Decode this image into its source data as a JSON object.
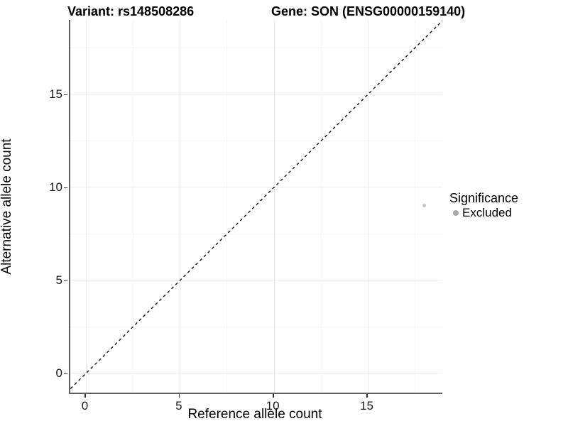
{
  "titles": {
    "variant": "Variant: rs148508286",
    "gene": "Gene: SON (ENSG00000159140)"
  },
  "axes": {
    "x_label": "Reference allele count",
    "y_label": "Alternative allele count"
  },
  "legend": {
    "title": "Significance",
    "items": [
      {
        "label": "Excluded",
        "color": "#a8a8a8"
      }
    ]
  },
  "colors": {
    "grid_major": "#ececec",
    "grid_minor": "#f6f6f6",
    "tick_mark": "#333333",
    "dash_line": "#111111",
    "point": "#c6c6c6"
  },
  "chart_data": {
    "type": "scatter",
    "title": "Variant: rs148508286 | Gene: SON (ENSG00000159140)",
    "xlabel": "Reference allele count",
    "ylabel": "Alternative allele count",
    "xlim": [
      -0.85,
      18.95
    ],
    "ylim": [
      -1.05,
      19.0
    ],
    "x_ticks": [
      0,
      5,
      10,
      15
    ],
    "y_ticks": [
      0,
      5,
      10,
      15
    ],
    "x_minor_ticks": [
      2.5,
      7.5,
      12.5,
      17.5
    ],
    "y_minor_ticks": [
      2.5,
      7.5,
      12.5,
      17.5
    ],
    "grid": true,
    "legend_position": "right",
    "series": [
      {
        "name": "Excluded",
        "points": [
          {
            "x": 18,
            "y": 9
          }
        ],
        "color": "#c6c6c6",
        "point_size": 5
      }
    ],
    "reference_line": {
      "kind": "identity y=x",
      "style": "dashed",
      "from": [
        -1.05,
        -1.05
      ],
      "to": [
        19.2,
        19.2
      ]
    }
  }
}
